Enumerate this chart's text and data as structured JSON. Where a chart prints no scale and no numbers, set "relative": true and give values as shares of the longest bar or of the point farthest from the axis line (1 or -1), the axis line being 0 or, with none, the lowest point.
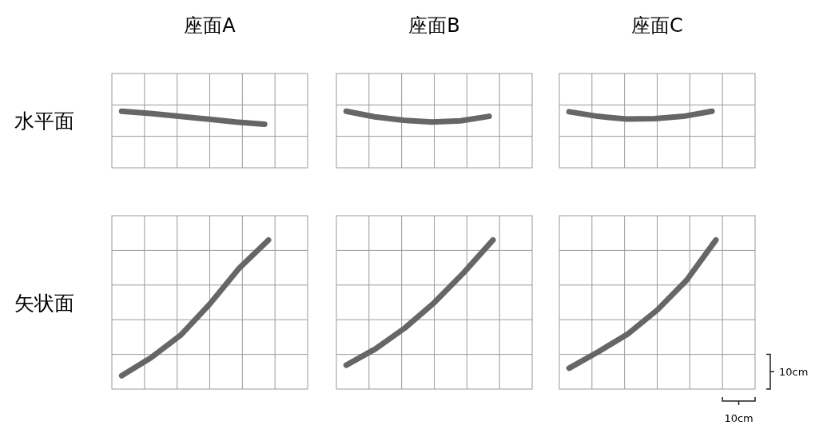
{
  "chart_data": [
    {
      "type": "line",
      "relative": true,
      "title": "座面A",
      "ylabel": "水平面",
      "categories": [
        null,
        null,
        null,
        null,
        null,
        null
      ],
      "values": [
        1,
        0.96,
        0.91,
        0.86,
        0.81,
        0.77
      ],
      "color": "#666666",
      "grid": true
    },
    {
      "type": "line",
      "relative": true,
      "title": "座面B",
      "categories": [
        null,
        null,
        null,
        null,
        null,
        null
      ],
      "values": [
        1,
        0.9,
        0.84,
        0.81,
        0.83,
        0.91
      ],
      "color": "#666666",
      "grid": true
    },
    {
      "type": "line",
      "relative": true,
      "title": "座面C",
      "categories": [
        null,
        null,
        null,
        null,
        null,
        null
      ],
      "values": [
        0.99,
        0.91,
        0.86,
        0.87,
        0.91,
        1
      ],
      "color": "#666666",
      "grid": true
    },
    {
      "type": "line",
      "relative": true,
      "ylabel": "矢状面",
      "categories": [
        null,
        null,
        null,
        null,
        null,
        null
      ],
      "values": [
        0.09,
        0.21,
        0.36,
        0.57,
        0.81,
        1
      ],
      "color": "#666666",
      "grid": true
    },
    {
      "type": "line",
      "relative": true,
      "categories": [
        null,
        null,
        null,
        null,
        null,
        null
      ],
      "values": [
        0.16,
        0.27,
        0.41,
        0.58,
        0.78,
        1
      ],
      "color": "#666666",
      "grid": true
    },
    {
      "type": "line",
      "relative": true,
      "categories": [
        null,
        null,
        null,
        null,
        null,
        null
      ],
      "values": [
        0.14,
        0.25,
        0.37,
        0.53,
        0.73,
        1
      ],
      "color": "#666666",
      "grid": true,
      "annotations": [
        "10cm",
        "10cm"
      ]
    }
  ]
}
